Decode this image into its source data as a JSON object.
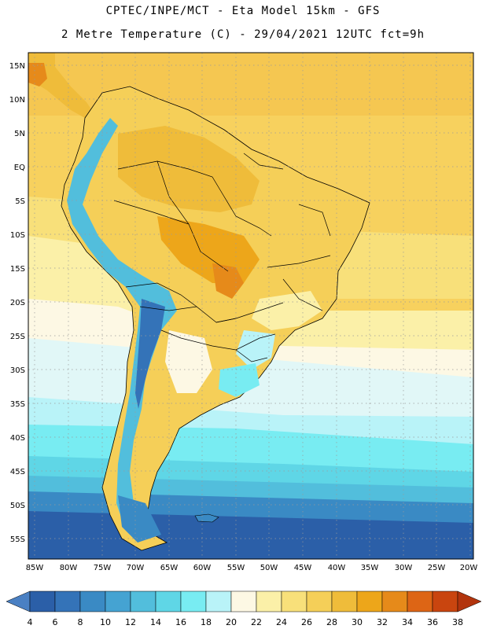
{
  "header": {
    "line1": "CPTEC/INPE/MCT -  Eta Model 15km - GFS",
    "line2": "2 Metre Temperature (C) - 29/04/2021 12UTC fct=9h"
  },
  "map": {
    "lat_labels": [
      "15N",
      "10N",
      "5N",
      "EQ",
      "5S",
      "10S",
      "15S",
      "20S",
      "25S",
      "30S",
      "35S",
      "40S",
      "45S",
      "50S",
      "55S"
    ],
    "lon_labels": [
      "85W",
      "80W",
      "75W",
      "70W",
      "65W",
      "60W",
      "55W",
      "50W",
      "45W",
      "40W",
      "35W",
      "30W",
      "25W",
      "20W"
    ]
  },
  "colorbar": {
    "labels": [
      "4",
      "6",
      "8",
      "10",
      "12",
      "14",
      "16",
      "18",
      "20",
      "22",
      "24",
      "26",
      "28",
      "30",
      "32",
      "34",
      "36",
      "38"
    ],
    "colors": [
      "#2b5fa8",
      "#3473b8",
      "#3a8ac4",
      "#45a3d2",
      "#52bedc",
      "#5fd6e6",
      "#78ecf2",
      "#b9f3f8",
      "#fdf8e4",
      "#fbf0a8",
      "#f8e07a",
      "#f5cf58",
      "#efbc3a",
      "#eda61a",
      "#e68a1a",
      "#dd6515",
      "#c9450f",
      "#b2340d"
    ],
    "low_color": "#4a80c3",
    "high_color": "#b2340d"
  }
}
